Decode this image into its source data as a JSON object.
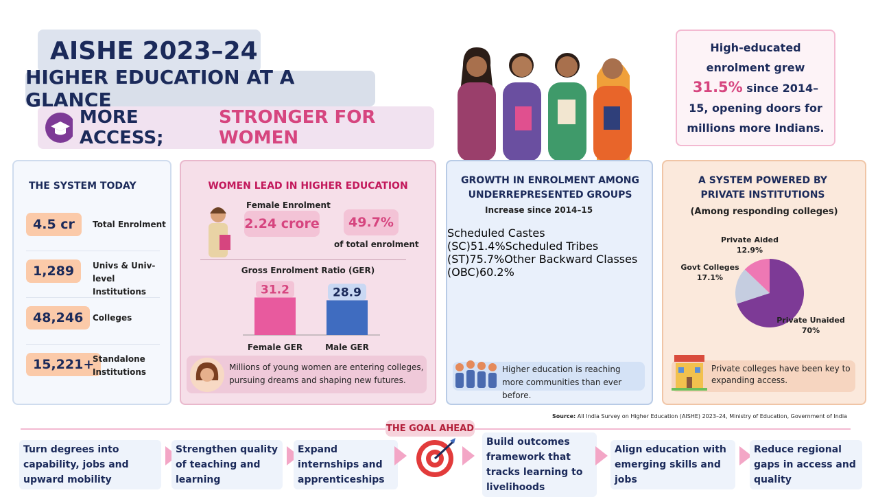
{
  "header": {
    "title": "AISHE 2023–24",
    "subtitle": "HIGHER EDUCATION AT A GLANCE",
    "tagline_a": "MORE ACCESS;",
    "tagline_b": "STRONGER FOR WOMEN"
  },
  "callout": {
    "before": "High-educated enrolment grew",
    "highlight": "31.5%",
    "after": "since 2014–15, opening doors for millions more Indians."
  },
  "system": {
    "title": "THE SYSTEM TODAY",
    "items": [
      {
        "value": "4.5 cr",
        "label": "Total Enrolment"
      },
      {
        "value": "1,289",
        "label": "Univs & Univ-level Institutions"
      },
      {
        "value": "48,246",
        "label": "Colleges"
      },
      {
        "value": "15,221+",
        "label": "Standalone Institutions"
      }
    ]
  },
  "women": {
    "title": "WOMEN LEAD IN HIGHER EDUCATION",
    "enrolment_label": "Female Enrolment",
    "enrolment": "2.24 crore",
    "share": "49.7%",
    "share_label": "of total enrolment",
    "ger": {
      "type": "bar",
      "title": "Gross Enrolment Ratio (GER)",
      "categories": [
        "Female GER",
        "Male GER"
      ],
      "values": [
        31.2,
        28.9
      ],
      "colors": [
        "#e85a9e",
        "#3f6cc0"
      ]
    },
    "note": "Millions of young women are entering colleges, pursuing dreams and shaping new futures."
  },
  "growth": {
    "type": "bar",
    "title": "GROWTH IN ENROLMENT AMONG UNDERREPRESENTED GROUPS",
    "subtitle": "Increase since 2014–15",
    "categories": [
      "Scheduled Castes (SC)",
      "Scheduled Tribes (ST)",
      "Other Backward Classes (OBC)"
    ],
    "values": [
      51.4,
      75.7,
      60.2
    ],
    "value_labels": [
      "51.4%",
      "75.7%",
      "60.2%"
    ],
    "colors": [
      "#9b6cc0",
      "#5cc74a",
      "#ee8c5a"
    ],
    "note": "Higher education is reaching more communities than ever before."
  },
  "institutions": {
    "type": "pie",
    "title": "A SYSTEM POWERED BY PRIVATE INSTITUTIONS",
    "subtitle": "(Among responding colleges)",
    "categories": [
      "Private Unaided",
      "Govt Colleges",
      "Private Aided"
    ],
    "values": [
      70,
      17.1,
      12.9
    ],
    "value_labels": [
      "70%",
      "17.1%",
      "12.9%"
    ],
    "colors": [
      "#7d3a96",
      "#c5cde0",
      "#ee78b4"
    ],
    "note": "Private colleges have been key to expanding access."
  },
  "source": {
    "label": "Source:",
    "text": "All India Survey on Higher Education (AISHE) 2023–24, Ministry of Education, Government of India"
  },
  "goal": {
    "title": "THE GOAL AHEAD",
    "steps": [
      "Turn degrees into capability, jobs and upward mobility",
      "Strengthen quality of teaching and learning",
      "Expand internships and apprenticeships",
      "Build outcomes framework that tracks learning to livelihoods",
      "Align education with emerging skills and jobs",
      "Reduce regional gaps in access and quality"
    ]
  }
}
